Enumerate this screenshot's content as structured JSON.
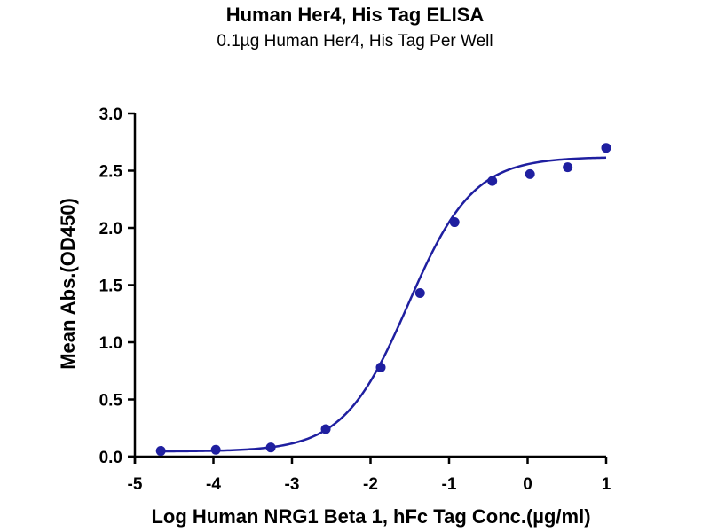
{
  "chart_data": {
    "type": "scatter",
    "title": "Human Her4, His Tag ELISA",
    "subtitle": "0.1µg Human Her4, His Tag Per Well",
    "xlabel": "Log Human NRG1 Beta 1, hFc Tag Conc.(µg/ml)",
    "ylabel": "Mean Abs.(OD450)",
    "xlim": [
      -5,
      1
    ],
    "ylim": [
      0,
      3.0
    ],
    "x_ticks": [
      "-5",
      "-4",
      "-3",
      "-2",
      "-1",
      "0",
      "1"
    ],
    "y_ticks": [
      "0.0",
      "0.5",
      "1.0",
      "1.5",
      "2.0",
      "2.5",
      "3.0"
    ],
    "grid": false,
    "color": "#1f1fa0",
    "series": [
      {
        "x": [
          -4.67,
          -3.97,
          -3.27,
          -2.57,
          -1.87,
          -1.37,
          -0.93,
          -0.45,
          0.03,
          0.51,
          1.0
        ],
        "y": [
          0.05,
          0.06,
          0.08,
          0.24,
          0.78,
          1.43,
          2.05,
          2.41,
          2.47,
          2.53,
          2.7
        ]
      }
    ],
    "fit": {
      "type": "4PL",
      "bottom": 0.045,
      "top": 2.62,
      "logEC50": -1.52,
      "hill": 1.05
    }
  }
}
